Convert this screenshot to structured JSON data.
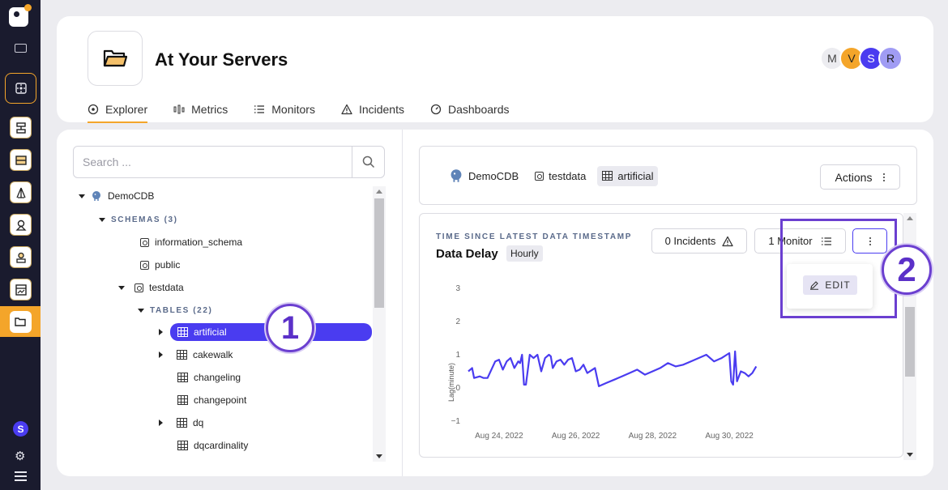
{
  "app": {
    "colors": {
      "accent": "#f4a52a",
      "primary": "#4a3cf0",
      "callout": "#6b3fd0",
      "rail": "#1a1b2e"
    }
  },
  "rail": {
    "icons": [
      "logo-icon",
      "keyboard-icon",
      "target-icon",
      "server-icon",
      "database-icon",
      "network-icon",
      "cluster-icon",
      "user-icon",
      "dashboard-icon",
      "folder-icon"
    ],
    "user_badge": "S",
    "settings_icon": "gear-icon",
    "menu_icon": "menu-icon"
  },
  "header": {
    "title": "At Your Servers",
    "avatars": [
      {
        "letter": "M",
        "bg": "#ececf0",
        "fg": "#444444"
      },
      {
        "letter": "V",
        "bg": "#f4a52a",
        "fg": "#222222"
      },
      {
        "letter": "S",
        "bg": "#4a3cf0",
        "fg": "#ffffff"
      },
      {
        "letter": "R",
        "bg": "#a09cf4",
        "fg": "#222222"
      }
    ],
    "tabs": [
      {
        "label": "Explorer",
        "icon": "compass-icon",
        "active": true
      },
      {
        "label": "Metrics",
        "icon": "metrics-icon",
        "active": false
      },
      {
        "label": "Monitors",
        "icon": "list-icon",
        "active": false
      },
      {
        "label": "Incidents",
        "icon": "warning-icon",
        "active": false
      },
      {
        "label": "Dashboards",
        "icon": "gauge-icon",
        "active": false
      }
    ]
  },
  "explorer": {
    "search_placeholder": "Search ...",
    "tree": {
      "root": "DemoCDB",
      "schemas_label": "SCHEMAS (3)",
      "schemas": [
        "information_schema",
        "public",
        "testdata"
      ],
      "tables_label": "TABLES (22)",
      "tables": [
        "artificial",
        "cakewalk",
        "changeling",
        "changepoint",
        "dq",
        "dqcardinality"
      ]
    }
  },
  "breadcrumb": {
    "items": [
      "DemoCDB",
      "testdata",
      "artificial"
    ],
    "actions_label": "Actions"
  },
  "metric": {
    "eyebrow": "TIME SINCE LATEST DATA TIMESTAMP",
    "title": "Data Delay",
    "frequency": "Hourly",
    "incidents_label": "0 Incidents",
    "monitor_label": "1 Monitor",
    "edit_label": "EDIT"
  },
  "callouts": {
    "one": "1",
    "two": "2"
  },
  "chart_data": {
    "type": "line",
    "title": "",
    "xlabel": "",
    "ylabel": "Lag(minute)",
    "ylim": [
      -1,
      3
    ],
    "yticks": [
      "3",
      "2",
      "1",
      "0",
      "−1"
    ],
    "xticks": [
      "Aug 24, 2022",
      "Aug 26, 2022",
      "Aug 28, 2022",
      "Aug 30, 2022"
    ],
    "xrange_days": [
      23.2,
      30.8
    ],
    "tick_day_positions": [
      24,
      26,
      28,
      30
    ],
    "series": [
      {
        "color": "#4a3cf0",
        "x": [
          23.2,
          23.3,
          23.35,
          23.5,
          23.6,
          23.7,
          23.9,
          24.0,
          24.1,
          24.2,
          24.3,
          24.4,
          24.5,
          24.55,
          24.6,
          24.65,
          24.7,
          24.8,
          24.9,
          25.0,
          25.1,
          25.2,
          25.3,
          25.35,
          25.4,
          25.5,
          25.6,
          25.7,
          25.8,
          25.9,
          26.0,
          26.1,
          26.2,
          26.3,
          26.5,
          26.6,
          26.8,
          27.0,
          27.2,
          27.4,
          27.6,
          27.8,
          28.0,
          28.2,
          28.4,
          28.6,
          28.8,
          29.0,
          29.2,
          29.4,
          29.6,
          29.8,
          30.0,
          30.05,
          30.1,
          30.15,
          30.2,
          30.3,
          30.4,
          30.5,
          30.6,
          30.7
        ],
        "y": [
          0.5,
          0.6,
          0.3,
          0.35,
          0.3,
          0.3,
          0.8,
          0.85,
          0.55,
          0.8,
          0.9,
          0.6,
          0.8,
          0.75,
          1.0,
          0.1,
          0.1,
          1.0,
          0.9,
          1.0,
          0.5,
          0.9,
          1.0,
          0.95,
          0.6,
          0.8,
          0.85,
          0.7,
          0.85,
          0.9,
          0.5,
          0.55,
          0.7,
          0.45,
          0.6,
          0.05,
          0.15,
          0.25,
          0.35,
          0.45,
          0.55,
          0.4,
          0.5,
          0.6,
          0.75,
          0.65,
          0.7,
          0.8,
          0.9,
          1.0,
          0.8,
          0.9,
          1.05,
          0.2,
          0.1,
          1.1,
          0.2,
          0.5,
          0.45,
          0.35,
          0.45,
          0.65
        ]
      }
    ]
  }
}
